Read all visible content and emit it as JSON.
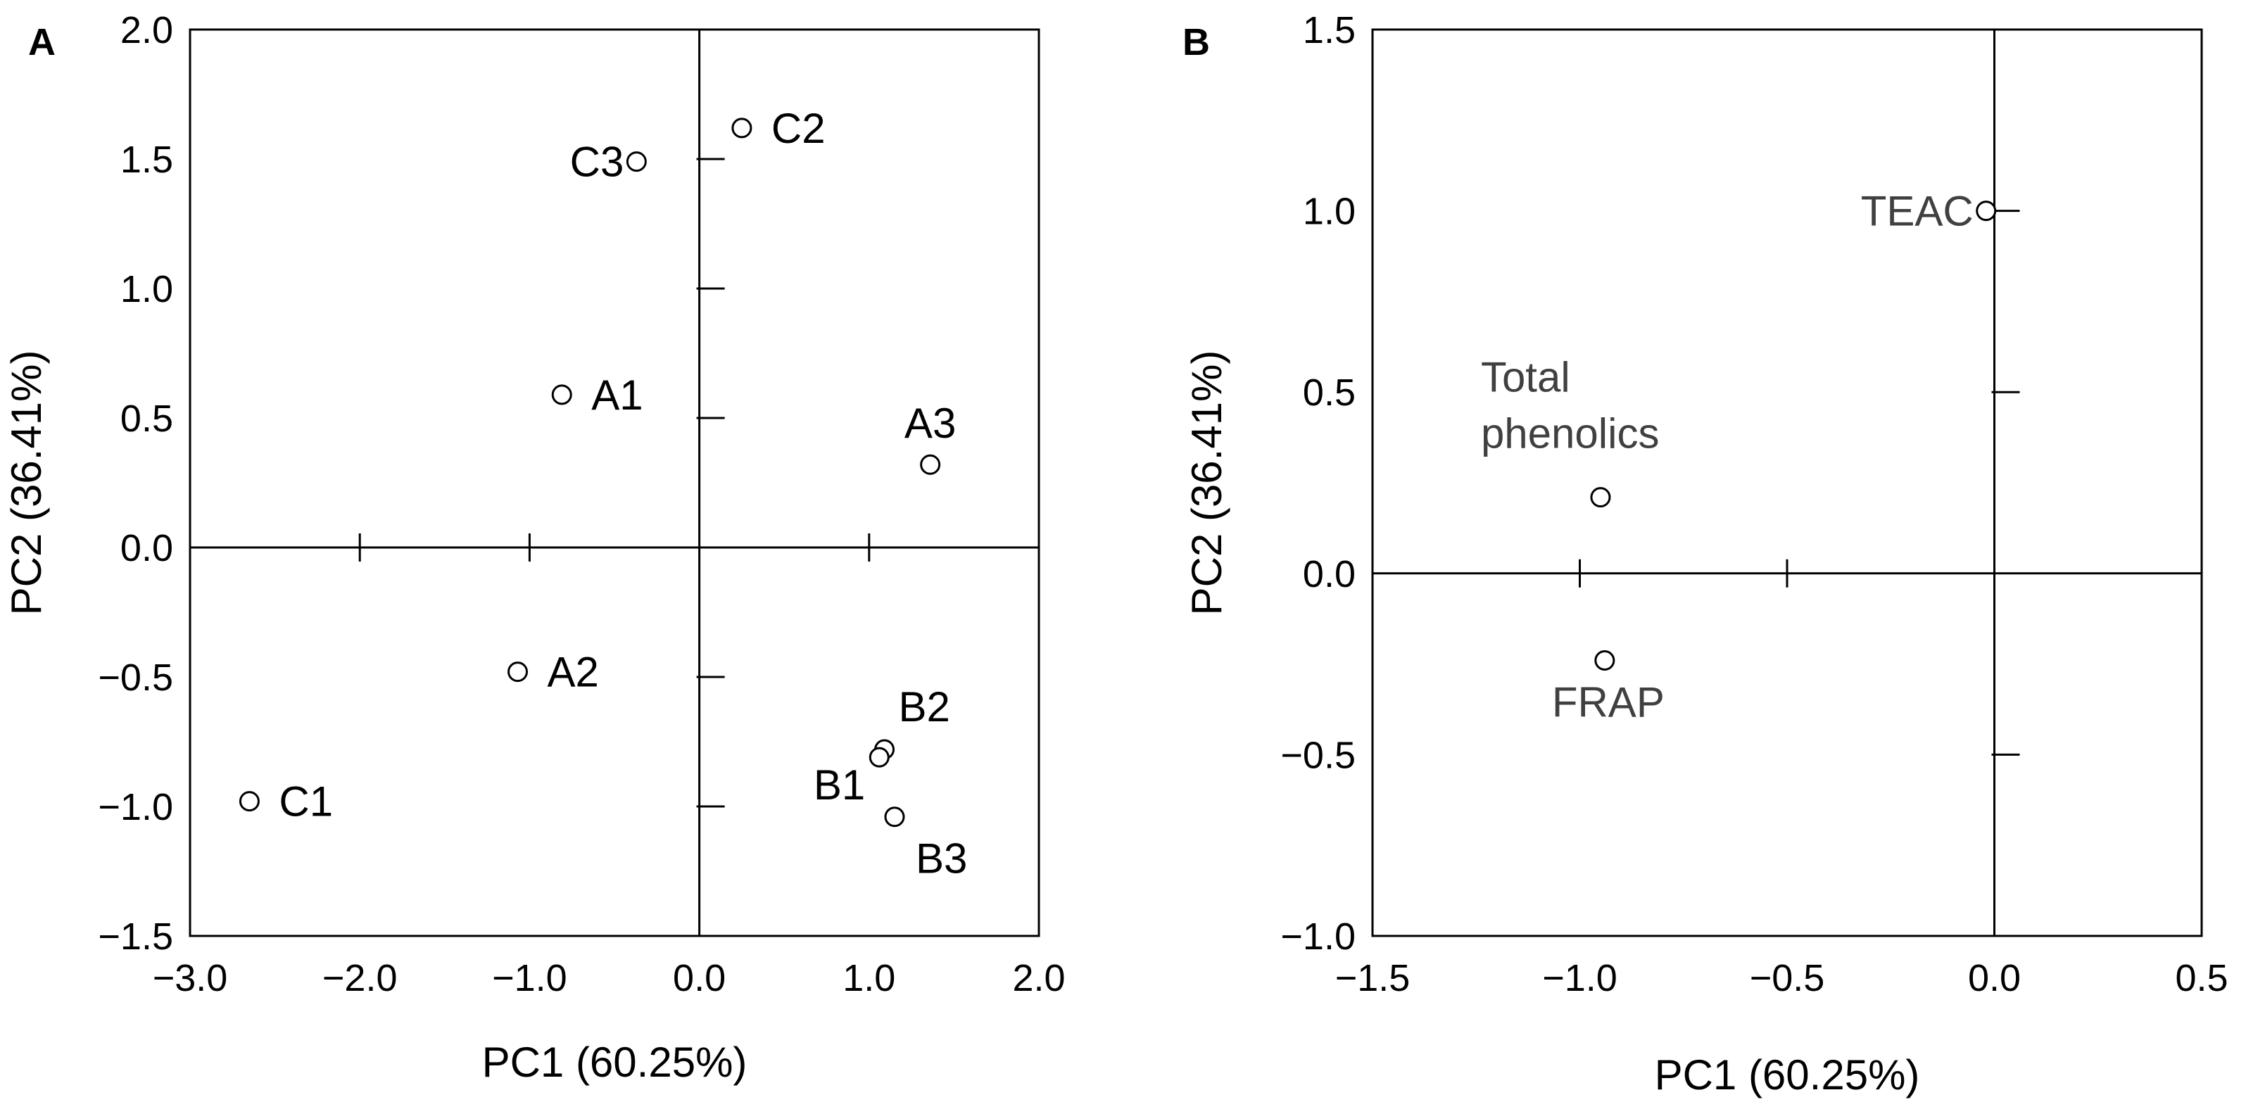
{
  "chart_data": [
    {
      "type": "scatter",
      "panel_label": "A",
      "xlabel": "PC1 (60.25%)",
      "ylabel": "PC2 (36.41%)",
      "xlim": [
        -3.0,
        2.0
      ],
      "ylim": [
        -1.5,
        2.0
      ],
      "x_ticks": [
        -3.0,
        -2.0,
        -1.0,
        0.0,
        1.0,
        2.0
      ],
      "y_ticks": [
        -1.5,
        -1.0,
        -0.5,
        0.0,
        0.5,
        1.0,
        1.5,
        2.0
      ],
      "x_tick_labels": [
        "−3.0",
        "−2.0",
        "−1.0",
        "0.0",
        "1.0",
        "2.0"
      ],
      "y_tick_labels": [
        "−1.5",
        "−1.0",
        "−0.5",
        "0.0",
        "0.5",
        "1.0",
        "1.5",
        "2.0"
      ],
      "points": [
        {
          "label": "C2",
          "x": 0.25,
          "y": 1.62,
          "label_pos": "right"
        },
        {
          "label": "C3",
          "x": -0.37,
          "y": 1.49,
          "label_pos": "left"
        },
        {
          "label": "A1",
          "x": -0.81,
          "y": 0.59,
          "label_pos": "right"
        },
        {
          "label": "A3",
          "x": 1.36,
          "y": 0.32,
          "label_pos": "above"
        },
        {
          "label": "A2",
          "x": -1.07,
          "y": -0.48,
          "label_pos": "right"
        },
        {
          "label": "B2",
          "x": 1.09,
          "y": -0.78,
          "label_pos": "above-right"
        },
        {
          "label": "B1",
          "x": 1.06,
          "y": -0.81,
          "label_pos": "below-left"
        },
        {
          "label": "B3",
          "x": 1.15,
          "y": -1.04,
          "label_pos": "below-right"
        },
        {
          "label": "C1",
          "x": -2.65,
          "y": -0.98,
          "label_pos": "right"
        }
      ]
    },
    {
      "type": "scatter",
      "panel_label": "B",
      "xlabel": "PC1 (60.25%)",
      "ylabel": "PC2 (36.41%)",
      "xlim": [
        -1.5,
        0.5
      ],
      "ylim": [
        -1.0,
        1.5
      ],
      "x_ticks": [
        -1.5,
        -1.0,
        -0.5,
        0.0,
        0.5
      ],
      "y_ticks": [
        -1.0,
        -0.5,
        0.0,
        0.5,
        1.0,
        1.5
      ],
      "x_tick_labels": [
        "−1.5",
        "−1.0",
        "−0.5",
        "0.0",
        "0.5"
      ],
      "y_tick_labels": [
        "−1.0",
        "−0.5",
        "0.0",
        "0.5",
        "1.0",
        "1.5"
      ],
      "points": [
        {
          "label": "TEAC",
          "x": -0.02,
          "y": 1.0,
          "label_pos": "left"
        },
        {
          "label": [
            "Total",
            "phenolics"
          ],
          "x": -0.95,
          "y": 0.21,
          "label_pos": "above-left"
        },
        {
          "label": "FRAP",
          "x": -0.94,
          "y": -0.24,
          "label_pos": "below"
        }
      ]
    }
  ]
}
